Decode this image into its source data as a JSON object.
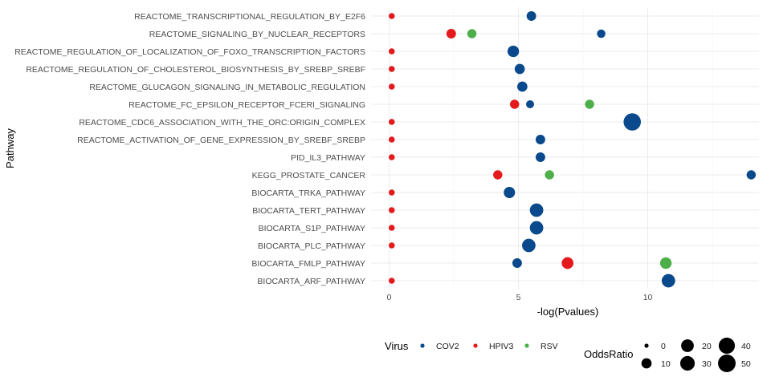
{
  "chart_data": {
    "type": "scatter",
    "title": "",
    "xlabel": "-log(Pvalues)",
    "ylabel": "Pathway",
    "xlim": [
      -0.7,
      14.3
    ],
    "xticks": [
      0,
      5,
      10
    ],
    "grid": true,
    "categories": [
      "REACTOME_TRANSCRIPTIONAL_REGULATION_BY_E2F6",
      "REACTOME_SIGNALING_BY_NUCLEAR_RECEPTORS",
      "REACTOME_REGULATION_OF_LOCALIZATION_OF_FOXO_TRANSCRIPTION_FACTORS",
      "REACTOME_REGULATION_OF_CHOLESTEROL_BIOSYNTHESIS_BY_SREBP_SREBF",
      "REACTOME_GLUCAGON_SIGNALING_IN_METABOLIC_REGULATION",
      "REACTOME_FC_EPSILON_RECEPTOR_FCERI_SIGNALING",
      "REACTOME_CDC6_ASSOCIATION_WITH_THE_ORC:ORIGIN_COMPLEX",
      "REACTOME_ACTIVATION_OF_GENE_EXPRESSION_BY_SREBF_SREBP",
      "PID_IL3_PATHWAY",
      "KEGG_PROSTATE_CANCER",
      "BIOCARTA_TRKA_PATHWAY",
      "BIOCARTA_TERT_PATHWAY",
      "BIOCARTA_S1P_PATHWAY",
      "BIOCARTA_PLC_PATHWAY",
      "BIOCARTA_FMLP_PATHWAY",
      "BIOCARTA_ARF_PATHWAY"
    ],
    "series": [
      {
        "name": "COV2",
        "color": "#0a4a8c",
        "points": [
          {
            "pathway": "REACTOME_TRANSCRIPTIONAL_REGULATION_BY_E2F6",
            "x": 5.5,
            "odds": 8
          },
          {
            "pathway": "REACTOME_SIGNALING_BY_NUCLEAR_RECEPTORS",
            "x": 8.2,
            "odds": 5
          },
          {
            "pathway": "REACTOME_REGULATION_OF_LOCALIZATION_OF_FOXO_TRANSCRIPTION_FACTORS",
            "x": 4.8,
            "odds": 15
          },
          {
            "pathway": "REACTOME_REGULATION_OF_CHOLESTEROL_BIOSYNTHESIS_BY_SREBP_SREBF",
            "x": 5.05,
            "odds": 10
          },
          {
            "pathway": "REACTOME_GLUCAGON_SIGNALING_IN_METABOLIC_REGULATION",
            "x": 5.15,
            "odds": 10
          },
          {
            "pathway": "REACTOME_FC_EPSILON_RECEPTOR_FCERI_SIGNALING",
            "x": 5.45,
            "odds": 4
          },
          {
            "pathway": "REACTOME_CDC6_ASSOCIATION_WITH_THE_ORC:ORIGIN_COMPLEX",
            "x": 9.4,
            "odds": 48
          },
          {
            "pathway": "REACTOME_ACTIVATION_OF_GENE_EXPRESSION_BY_SREBF_SREBP",
            "x": 5.85,
            "odds": 8
          },
          {
            "pathway": "PID_IL3_PATHWAY",
            "x": 5.85,
            "odds": 8
          },
          {
            "pathway": "KEGG_PROSTATE_CANCER",
            "x": 14.0,
            "odds": 7
          },
          {
            "pathway": "BIOCARTA_TRKA_PATHWAY",
            "x": 4.65,
            "odds": 14
          },
          {
            "pathway": "BIOCARTA_TERT_PATHWAY",
            "x": 5.7,
            "odds": 24
          },
          {
            "pathway": "BIOCARTA_S1P_PATHWAY",
            "x": 5.7,
            "odds": 24
          },
          {
            "pathway": "BIOCARTA_PLC_PATHWAY",
            "x": 5.4,
            "odds": 24
          },
          {
            "pathway": "BIOCARTA_FMLP_PATHWAY",
            "x": 4.95,
            "odds": 8
          },
          {
            "pathway": "BIOCARTA_ARF_PATHWAY",
            "x": 10.8,
            "odds": 24
          }
        ]
      },
      {
        "name": "HPIV3",
        "color": "#e41a1c",
        "points": [
          {
            "pathway": "REACTOME_TRANSCRIPTIONAL_REGULATION_BY_E2F6",
            "x": 0.1,
            "odds": 1
          },
          {
            "pathway": "REACTOME_SIGNALING_BY_NUCLEAR_RECEPTORS",
            "x": 2.4,
            "odds": 8
          },
          {
            "pathway": "REACTOME_REGULATION_OF_LOCALIZATION_OF_FOXO_TRANSCRIPTION_FACTORS",
            "x": 0.1,
            "odds": 1
          },
          {
            "pathway": "REACTOME_REGULATION_OF_CHOLESTEROL_BIOSYNTHESIS_BY_SREBP_SREBF",
            "x": 0.1,
            "odds": 1
          },
          {
            "pathway": "REACTOME_GLUCAGON_SIGNALING_IN_METABOLIC_REGULATION",
            "x": 0.1,
            "odds": 1
          },
          {
            "pathway": "REACTOME_FC_EPSILON_RECEPTOR_FCERI_SIGNALING",
            "x": 4.85,
            "odds": 7
          },
          {
            "pathway": "REACTOME_CDC6_ASSOCIATION_WITH_THE_ORC:ORIGIN_COMPLEX",
            "x": 0.1,
            "odds": 1
          },
          {
            "pathway": "REACTOME_ACTIVATION_OF_GENE_EXPRESSION_BY_SREBF_SREBP",
            "x": 0.1,
            "odds": 1
          },
          {
            "pathway": "PID_IL3_PATHWAY",
            "x": 0.1,
            "odds": 1
          },
          {
            "pathway": "KEGG_PROSTATE_CANCER",
            "x": 4.2,
            "odds": 7
          },
          {
            "pathway": "BIOCARTA_TRKA_PATHWAY",
            "x": 0.1,
            "odds": 1
          },
          {
            "pathway": "BIOCARTA_TERT_PATHWAY",
            "x": 0.1,
            "odds": 1
          },
          {
            "pathway": "BIOCARTA_S1P_PATHWAY",
            "x": 0.1,
            "odds": 1
          },
          {
            "pathway": "BIOCARTA_PLC_PATHWAY",
            "x": 0.1,
            "odds": 1
          },
          {
            "pathway": "BIOCARTA_FMLP_PATHWAY",
            "x": 6.9,
            "odds": 16
          },
          {
            "pathway": "BIOCARTA_ARF_PATHWAY",
            "x": 0.1,
            "odds": 1
          }
        ]
      },
      {
        "name": "RSV",
        "color": "#4daf4a",
        "points": [
          {
            "pathway": "REACTOME_SIGNALING_BY_NUCLEAR_RECEPTORS",
            "x": 3.2,
            "odds": 7
          },
          {
            "pathway": "REACTOME_FC_EPSILON_RECEPTOR_FCERI_SIGNALING",
            "x": 7.75,
            "odds": 7
          },
          {
            "pathway": "KEGG_PROSTATE_CANCER",
            "x": 6.2,
            "odds": 7
          },
          {
            "pathway": "BIOCARTA_FMLP_PATHWAY",
            "x": 10.7,
            "odds": 15
          }
        ]
      }
    ],
    "legend": {
      "position": "bottom",
      "color_title": "Virus",
      "color_items": [
        "COV2",
        "HPIV3",
        "RSV"
      ],
      "size_title": "OddsRatio",
      "size_items": [
        {
          "label": "0",
          "odds": 0
        },
        {
          "label": "10",
          "odds": 10
        },
        {
          "label": "20",
          "odds": 20
        },
        {
          "label": "30",
          "odds": 30
        },
        {
          "label": "40",
          "odds": 40
        },
        {
          "label": "50",
          "odds": 50
        }
      ]
    }
  }
}
